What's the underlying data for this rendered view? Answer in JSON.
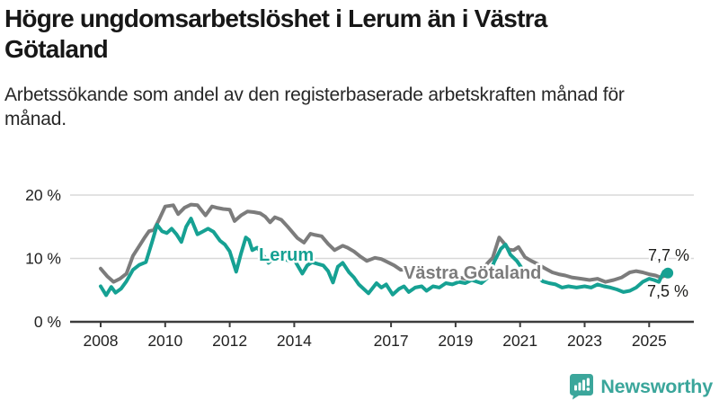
{
  "header": {
    "title": "Högre ungdomsarbetslöshet i Lerum än i Västra Götaland",
    "subtitle": "Arbetssökande som andel av den registerbaserade arbetskraften månad för månad."
  },
  "footer": {
    "brand": "Newsworthy",
    "brand_color": "#3ba69b"
  },
  "colors": {
    "lerum": "#16A193",
    "vastra_gotaland": "#7C7C7C",
    "grid": "#D8D8D8",
    "axis": "#3C3C3C",
    "text": "#1D1D1B"
  },
  "chart_data": {
    "type": "line",
    "title": "Högre ungdomsarbetslöshet i Lerum än i Västra Götaland",
    "xlabel": "",
    "ylabel": "",
    "unit": "%",
    "grid": "horizontal-only",
    "legend_position": "inline-labels",
    "y_axis": {
      "range": [
        0,
        21
      ],
      "ticks": [
        0,
        10,
        20
      ],
      "tick_labels": [
        "0 %",
        "10 %",
        "20 %"
      ],
      "gridlines": [
        10,
        20
      ]
    },
    "x_axis": {
      "range": [
        2007.95,
        2026.35
      ],
      "ticks": [
        2008,
        2010,
        2012,
        2014,
        2017,
        2019,
        2021,
        2023,
        2025
      ],
      "tick_labels": [
        "2008",
        "2010",
        "2012",
        "2014",
        "2017",
        "2019",
        "2021",
        "2023",
        "2025"
      ]
    },
    "series": [
      {
        "name": "Västra Götaland",
        "color": "#7C7C7C",
        "end_value": 7.5,
        "end_label": "7,5 %",
        "end_dot_r": 4,
        "label_anchor": {
          "x": 449,
          "y": 310
        },
        "end_label_anchor": {
          "x": 766,
          "y": 330
        },
        "points": [
          [
            2008.0,
            8.4
          ],
          [
            2008.2,
            7.2
          ],
          [
            2008.4,
            6.3
          ],
          [
            2008.6,
            6.8
          ],
          [
            2008.8,
            7.6
          ],
          [
            2009.0,
            10.4
          ],
          [
            2009.2,
            12.0
          ],
          [
            2009.35,
            13.2
          ],
          [
            2009.5,
            14.3
          ],
          [
            2009.65,
            14.5
          ],
          [
            2009.8,
            16.0
          ],
          [
            2010.0,
            18.2
          ],
          [
            2010.25,
            18.4
          ],
          [
            2010.4,
            17.0
          ],
          [
            2010.6,
            18.0
          ],
          [
            2010.8,
            18.5
          ],
          [
            2011.0,
            18.4
          ],
          [
            2011.25,
            16.8
          ],
          [
            2011.45,
            18.2
          ],
          [
            2011.6,
            18.0
          ],
          [
            2011.8,
            17.8
          ],
          [
            2012.0,
            17.7
          ],
          [
            2012.15,
            15.9
          ],
          [
            2012.35,
            16.8
          ],
          [
            2012.55,
            17.4
          ],
          [
            2012.75,
            17.3
          ],
          [
            2012.95,
            17.1
          ],
          [
            2013.1,
            16.6
          ],
          [
            2013.25,
            15.7
          ],
          [
            2013.4,
            16.5
          ],
          [
            2013.6,
            16.1
          ],
          [
            2013.8,
            15.0
          ],
          [
            2014.1,
            13.2
          ],
          [
            2014.3,
            12.5
          ],
          [
            2014.5,
            13.9
          ],
          [
            2014.65,
            13.7
          ],
          [
            2014.85,
            13.5
          ],
          [
            2015.05,
            12.3
          ],
          [
            2015.25,
            11.3
          ],
          [
            2015.5,
            12.0
          ],
          [
            2015.65,
            11.7
          ],
          [
            2015.85,
            11.1
          ],
          [
            2016.05,
            10.3
          ],
          [
            2016.25,
            9.6
          ],
          [
            2016.5,
            10.1
          ],
          [
            2016.7,
            9.9
          ],
          [
            2016.9,
            9.4
          ],
          [
            2017.1,
            8.9
          ],
          [
            2017.3,
            8.2
          ],
          [
            2017.5,
            8.3
          ],
          [
            2017.7,
            8.0
          ],
          [
            2017.9,
            7.8
          ],
          [
            2018.1,
            7.6
          ],
          [
            2018.35,
            7.4
          ],
          [
            2018.6,
            7.3
          ],
          [
            2018.85,
            7.1
          ],
          [
            2019.1,
            7.0
          ],
          [
            2019.3,
            6.8
          ],
          [
            2019.55,
            7.2
          ],
          [
            2019.8,
            8.0
          ],
          [
            2020.0,
            9.3
          ],
          [
            2020.15,
            10.1
          ],
          [
            2020.35,
            13.3
          ],
          [
            2020.5,
            12.4
          ],
          [
            2020.65,
            11.4
          ],
          [
            2020.8,
            11.3
          ],
          [
            2020.95,
            11.8
          ],
          [
            2021.15,
            10.2
          ],
          [
            2021.35,
            9.6
          ],
          [
            2021.55,
            9.1
          ],
          [
            2021.75,
            8.5
          ],
          [
            2022.0,
            7.8
          ],
          [
            2022.2,
            7.5
          ],
          [
            2022.4,
            7.3
          ],
          [
            2022.6,
            7.0
          ],
          [
            2022.9,
            6.8
          ],
          [
            2023.15,
            6.6
          ],
          [
            2023.4,
            6.8
          ],
          [
            2023.65,
            6.3
          ],
          [
            2023.9,
            6.6
          ],
          [
            2024.15,
            7.0
          ],
          [
            2024.4,
            7.8
          ],
          [
            2024.6,
            8.0
          ],
          [
            2024.8,
            7.8
          ],
          [
            2025.0,
            7.5
          ],
          [
            2025.2,
            7.3
          ],
          [
            2025.35,
            7.0
          ],
          [
            2025.5,
            7.3
          ],
          [
            2025.58,
            7.5
          ]
        ]
      },
      {
        "name": "Lerum",
        "color": "#16A193",
        "end_value": 7.7,
        "end_label": "7,7 %",
        "end_dot_r": 6,
        "label_anchor": {
          "x": 288,
          "y": 290
        },
        "end_label_anchor": {
          "x": 767,
          "y": 290
        },
        "points": [
          [
            2008.0,
            5.6
          ],
          [
            2008.17,
            4.2
          ],
          [
            2008.33,
            5.5
          ],
          [
            2008.46,
            4.6
          ],
          [
            2008.63,
            5.2
          ],
          [
            2008.8,
            6.4
          ],
          [
            2009.0,
            8.2
          ],
          [
            2009.2,
            9.0
          ],
          [
            2009.4,
            9.4
          ],
          [
            2009.6,
            12.7
          ],
          [
            2009.75,
            15.3
          ],
          [
            2009.9,
            14.3
          ],
          [
            2010.05,
            14.0
          ],
          [
            2010.2,
            14.7
          ],
          [
            2010.35,
            13.8
          ],
          [
            2010.5,
            12.6
          ],
          [
            2010.65,
            15.0
          ],
          [
            2010.8,
            16.3
          ],
          [
            2011.0,
            13.8
          ],
          [
            2011.15,
            14.2
          ],
          [
            2011.33,
            14.7
          ],
          [
            2011.5,
            14.2
          ],
          [
            2011.7,
            12.8
          ],
          [
            2011.85,
            12.2
          ],
          [
            2012.0,
            11.1
          ],
          [
            2012.2,
            7.9
          ],
          [
            2012.35,
            10.8
          ],
          [
            2012.5,
            13.3
          ],
          [
            2012.6,
            12.9
          ],
          [
            2012.7,
            11.3
          ],
          [
            2012.85,
            11.7
          ],
          [
            2013.0,
            10.8
          ],
          [
            2013.2,
            9.3
          ],
          [
            2013.35,
            10.0
          ],
          [
            2013.5,
            10.3
          ],
          [
            2013.7,
            9.9
          ],
          [
            2013.85,
            9.6
          ],
          [
            2014.0,
            9.8
          ],
          [
            2014.25,
            7.6
          ],
          [
            2014.4,
            8.9
          ],
          [
            2014.55,
            9.4
          ],
          [
            2014.75,
            9.1
          ],
          [
            2014.9,
            8.9
          ],
          [
            2015.05,
            8.0
          ],
          [
            2015.2,
            6.2
          ],
          [
            2015.35,
            8.7
          ],
          [
            2015.5,
            9.3
          ],
          [
            2015.7,
            7.8
          ],
          [
            2015.85,
            7.0
          ],
          [
            2016.0,
            5.9
          ],
          [
            2016.3,
            4.5
          ],
          [
            2016.55,
            6.1
          ],
          [
            2016.7,
            5.4
          ],
          [
            2016.85,
            5.9
          ],
          [
            2017.05,
            4.3
          ],
          [
            2017.25,
            5.2
          ],
          [
            2017.4,
            5.6
          ],
          [
            2017.55,
            4.7
          ],
          [
            2017.75,
            5.4
          ],
          [
            2017.95,
            5.6
          ],
          [
            2018.1,
            4.9
          ],
          [
            2018.3,
            5.6
          ],
          [
            2018.5,
            5.4
          ],
          [
            2018.7,
            6.1
          ],
          [
            2018.9,
            5.9
          ],
          [
            2019.1,
            6.3
          ],
          [
            2019.3,
            6.1
          ],
          [
            2019.5,
            6.6
          ],
          [
            2019.8,
            6.1
          ],
          [
            2020.0,
            7.0
          ],
          [
            2020.2,
            9.5
          ],
          [
            2020.4,
            11.5
          ],
          [
            2020.55,
            12.2
          ],
          [
            2020.7,
            10.6
          ],
          [
            2020.9,
            9.6
          ],
          [
            2021.05,
            8.5
          ],
          [
            2021.25,
            7.8
          ],
          [
            2021.5,
            7.3
          ],
          [
            2021.7,
            6.4
          ],
          [
            2021.9,
            6.1
          ],
          [
            2022.1,
            5.9
          ],
          [
            2022.3,
            5.4
          ],
          [
            2022.5,
            5.6
          ],
          [
            2022.75,
            5.4
          ],
          [
            2023.0,
            5.6
          ],
          [
            2023.2,
            5.4
          ],
          [
            2023.4,
            5.9
          ],
          [
            2023.6,
            5.6
          ],
          [
            2023.8,
            5.4
          ],
          [
            2024.0,
            5.1
          ],
          [
            2024.2,
            4.7
          ],
          [
            2024.4,
            4.9
          ],
          [
            2024.6,
            5.4
          ],
          [
            2024.8,
            6.3
          ],
          [
            2025.0,
            6.8
          ],
          [
            2025.15,
            6.6
          ],
          [
            2025.3,
            6.3
          ],
          [
            2025.45,
            7.9
          ],
          [
            2025.58,
            7.7
          ]
        ]
      }
    ]
  }
}
